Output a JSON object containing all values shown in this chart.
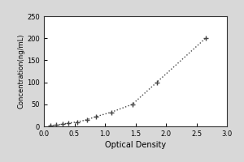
{
  "x_data": [
    0.1,
    0.2,
    0.3,
    0.4,
    0.55,
    0.7,
    0.85,
    1.1,
    1.45,
    1.85,
    2.65
  ],
  "y_data": [
    1.5,
    3.0,
    5.0,
    7.5,
    10.0,
    15.0,
    22.0,
    32.0,
    50.0,
    100.0,
    200.0
  ],
  "xlabel": "Optical Density",
  "ylabel": "Concentration(ng/mL)",
  "xlim": [
    0,
    3
  ],
  "ylim": [
    0,
    250
  ],
  "xticks": [
    0,
    0.5,
    1,
    1.5,
    2,
    2.5,
    3
  ],
  "yticks": [
    0,
    50,
    100,
    150,
    200,
    250
  ],
  "line_color": "#444444",
  "marker": "+",
  "linestyle": "dotted",
  "fig_bg_color": "#d8d8d8",
  "plot_bg_color": "#ffffff",
  "box_edge_color": "#333333"
}
